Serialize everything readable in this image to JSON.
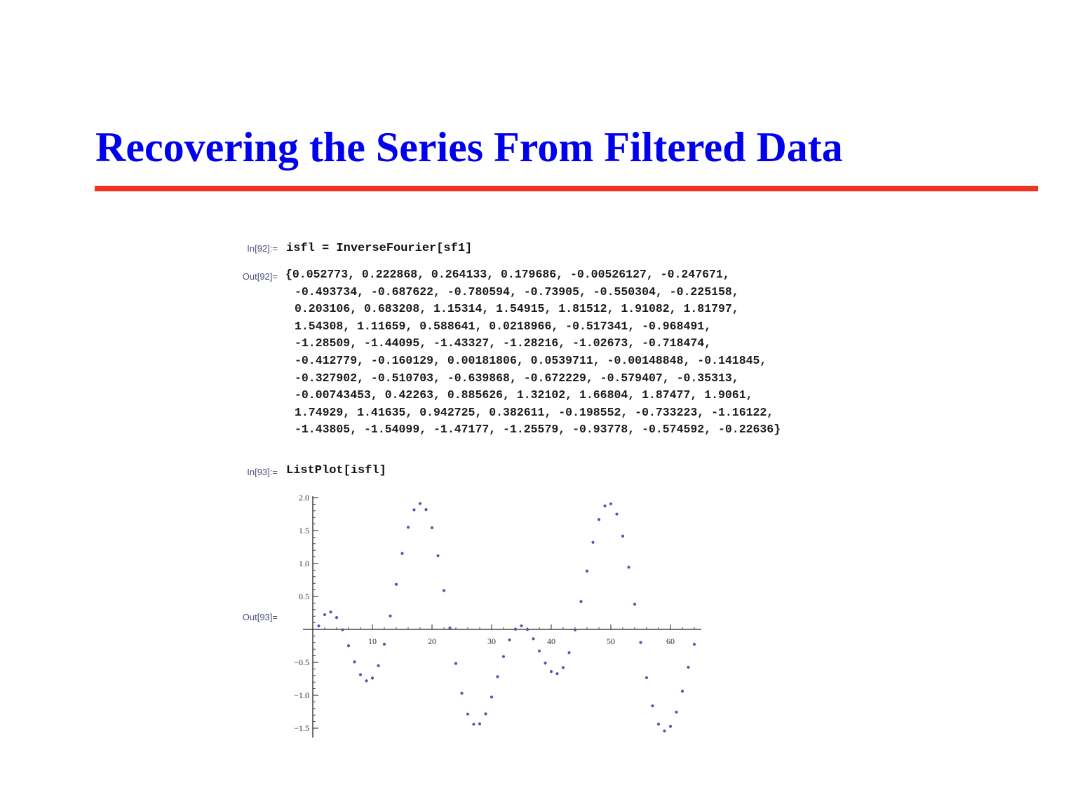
{
  "slide": {
    "title": "Recovering the Series From Filtered Data"
  },
  "cells": {
    "in92_label": "In[92]:=",
    "in92_code": "isfl = InverseFourier[sf1]",
    "out92_label": "Out[92]=",
    "out92_lines": [
      "{0.052773, 0.222868, 0.264133, 0.179686, -0.00526127, -0.247671,",
      "-0.493734, -0.687622, -0.780594, -0.73905, -0.550304, -0.225158,",
      "0.203106, 0.683208, 1.15314, 1.54915, 1.81512, 1.91082, 1.81797,",
      "1.54308, 1.11659, 0.588641, 0.0218966, -0.517341, -0.968491,",
      "-1.28509, -1.44095, -1.43327, -1.28216, -1.02673, -0.718474,",
      "-0.412779, -0.160129, 0.00181806, 0.0539711, -0.00148848, -0.141845,",
      "-0.327902, -0.510703, -0.639868, -0.672229, -0.579407, -0.35313,",
      "-0.00743453, 0.42263, 0.885626, 1.32102, 1.66804, 1.87477, 1.9061,",
      "1.74929, 1.41635, 0.942725, 0.382611, -0.198552, -0.733223, -1.16122,",
      "-1.43805, -1.54099, -1.47177, -1.25579, -0.93778, -0.574592, -0.22636}"
    ],
    "in93_label": "In[93]:=",
    "in93_code": "ListPlot[isfl]",
    "out93_label": "Out[93]="
  },
  "chart_data": {
    "type": "scatter",
    "title": "",
    "xlabel": "",
    "ylabel": "",
    "xlim": [
      0,
      64
    ],
    "ylim": [
      -1.6,
      2.0
    ],
    "x_ticks": [
      10,
      20,
      30,
      40,
      50,
      60
    ],
    "y_ticks": [
      -1.5,
      -1.0,
      -0.5,
      0.5,
      1.0,
      1.5,
      2.0
    ],
    "x_tick_labels": [
      "10",
      "20",
      "30",
      "40",
      "50",
      "60"
    ],
    "y_tick_labels": [
      "−1.5",
      "−1.0",
      "−0.5",
      "0.5",
      "1.0",
      "1.5",
      "2.0"
    ],
    "grid": false,
    "marker_color": "#5555aa",
    "x": [
      1,
      2,
      3,
      4,
      5,
      6,
      7,
      8,
      9,
      10,
      11,
      12,
      13,
      14,
      15,
      16,
      17,
      18,
      19,
      20,
      21,
      22,
      23,
      24,
      25,
      26,
      27,
      28,
      29,
      30,
      31,
      32,
      33,
      34,
      35,
      36,
      37,
      38,
      39,
      40,
      41,
      42,
      43,
      44,
      45,
      46,
      47,
      48,
      49,
      50,
      51,
      52,
      53,
      54,
      55,
      56,
      57,
      58,
      59,
      60,
      61,
      62,
      63,
      64
    ],
    "y": [
      0.052773,
      0.222868,
      0.264133,
      0.179686,
      -0.00526127,
      -0.247671,
      -0.493734,
      -0.687622,
      -0.780594,
      -0.73905,
      -0.550304,
      -0.225158,
      0.203106,
      0.683208,
      1.15314,
      1.54915,
      1.81512,
      1.91082,
      1.81797,
      1.54308,
      1.11659,
      0.588641,
      0.0218966,
      -0.517341,
      -0.968491,
      -1.28509,
      -1.44095,
      -1.43327,
      -1.28216,
      -1.02673,
      -0.718474,
      -0.412779,
      -0.160129,
      0.00181806,
      0.0539711,
      -0.00148848,
      -0.141845,
      -0.327902,
      -0.510703,
      -0.639868,
      -0.672229,
      -0.579407,
      -0.35313,
      -0.00743453,
      0.42263,
      0.885626,
      1.32102,
      1.66804,
      1.87477,
      1.9061,
      1.74929,
      1.41635,
      0.942725,
      0.382611,
      -0.198552,
      -0.733223,
      -1.16122,
      -1.43805,
      -1.54099,
      -1.47177,
      -1.25579,
      -0.93778,
      -0.574592,
      -0.22636
    ]
  }
}
